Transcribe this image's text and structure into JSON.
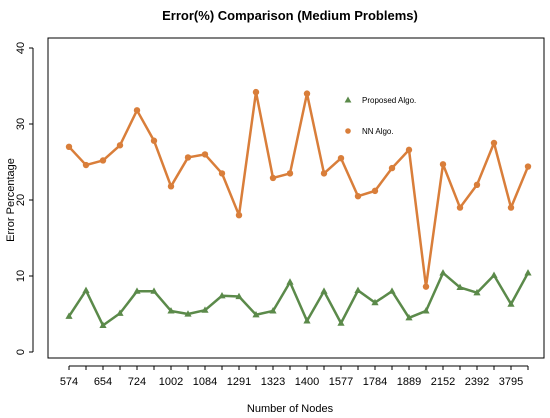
{
  "chart_data": {
    "type": "line",
    "title": "Error(%) Comparison (Medium Problems)",
    "xlabel": "Number of Nodes",
    "ylabel": "Error Percentage",
    "ylim": [
      0,
      40
    ],
    "yticks": [
      0,
      10,
      20,
      30,
      40
    ],
    "x_tick_labels": [
      "574",
      "654",
      "724",
      "1002",
      "1084",
      "1291",
      "1323",
      "1400",
      "1577",
      "1784",
      "1889",
      "2152",
      "2392",
      "3795"
    ],
    "n_points": 28,
    "legend_position": "top-right",
    "series": [
      {
        "name": "Proposed Algo.",
        "color": "#5b8a4a",
        "marker": "triangle",
        "values": [
          4.7,
          8.1,
          3.5,
          5.1,
          8.0,
          8.0,
          5.4,
          5.0,
          5.5,
          7.4,
          7.3,
          4.9,
          5.4,
          9.2,
          4.1,
          8.0,
          3.8,
          8.1,
          6.5,
          8.0,
          4.5,
          5.4,
          10.4,
          8.5,
          7.8,
          10.1,
          6.3,
          10.4
        ]
      },
      {
        "name": "NN Algo.",
        "color": "#d97e3a",
        "marker": "circle",
        "values": [
          27.0,
          24.6,
          25.2,
          27.2,
          31.8,
          27.8,
          21.8,
          25.6,
          26.0,
          23.5,
          18.0,
          34.2,
          22.9,
          23.5,
          34.0,
          23.5,
          25.5,
          20.5,
          21.2,
          24.2,
          26.6,
          8.6,
          24.7,
          19.0,
          22.0,
          27.5,
          19.0,
          24.4
        ]
      }
    ]
  }
}
